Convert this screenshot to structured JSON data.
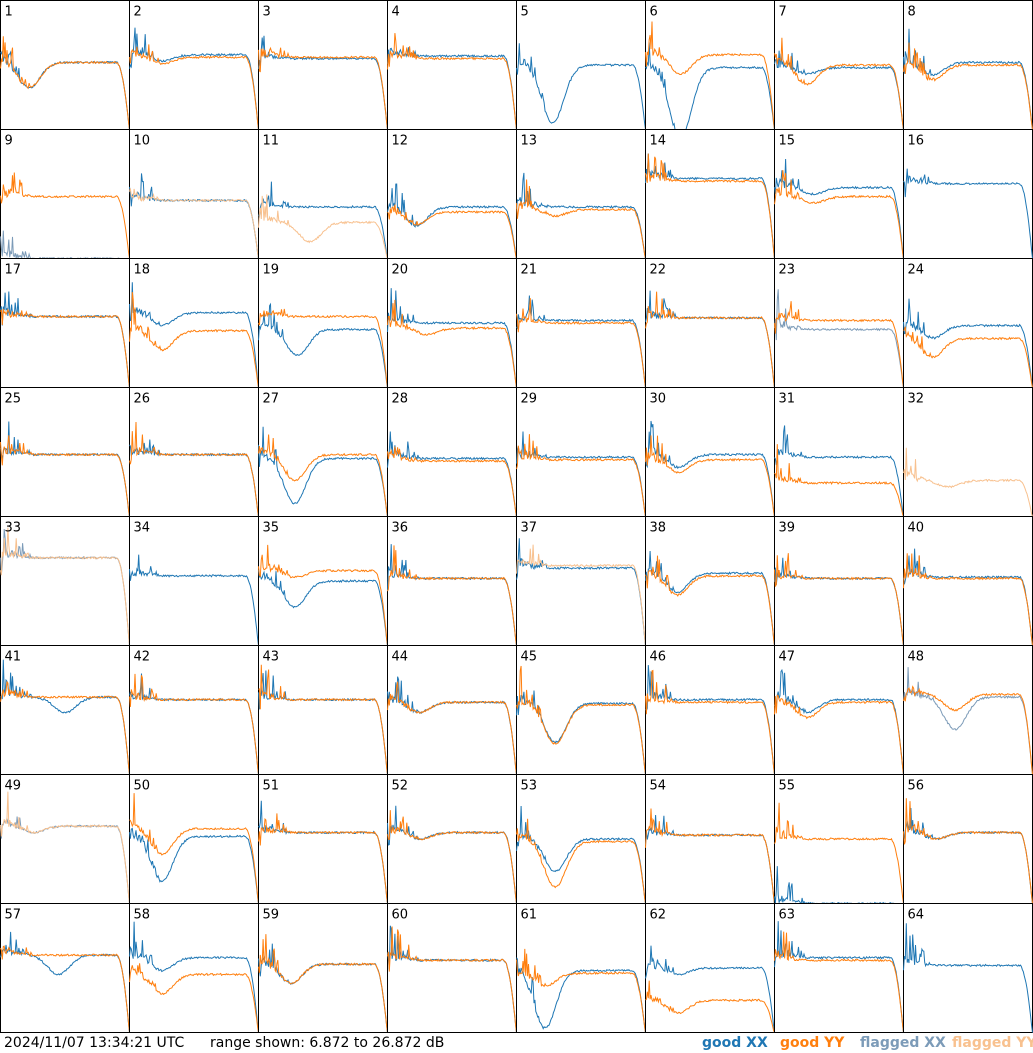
{
  "chart_data": {
    "type": "line",
    "layout": "small-multiples 8x8",
    "yrange_db": [
      6.872,
      26.872
    ],
    "series_styles": [
      {
        "key": "good_xx",
        "name": "good XX",
        "color": "#1f77b4"
      },
      {
        "key": "good_yy",
        "name": "good YY",
        "color": "#ff7f0e"
      },
      {
        "key": "flagged_xx",
        "name": "flagged XX",
        "color": "#7c9bb8"
      },
      {
        "key": "flagged_yy",
        "name": "flagged YY",
        "color": "#f8c18f"
      }
    ],
    "panels": [
      {
        "id": 1,
        "xx": "good",
        "yy": "good",
        "level_xx": 0.52,
        "level_yy": 0.52,
        "dip_xx": 0.2,
        "dip_yy": 0.2,
        "dip_pos": 0.22
      },
      {
        "id": 2,
        "xx": "good",
        "yy": "good",
        "level_xx": 0.58,
        "level_yy": 0.56,
        "dip_xx": 0.05,
        "dip_yy": 0.05,
        "dip_pos": 0.25
      },
      {
        "id": 3,
        "xx": "good",
        "yy": "good",
        "level_xx": 0.55,
        "level_yy": 0.56,
        "dip_xx": 0.0,
        "dip_yy": 0.0,
        "dip_pos": 0.3
      },
      {
        "id": 4,
        "xx": "good",
        "yy": "good",
        "level_xx": 0.57,
        "level_yy": 0.55,
        "dip_xx": 0.0,
        "dip_yy": 0.0,
        "dip_pos": 0.3
      },
      {
        "id": 5,
        "xx": "good",
        "yy": "none",
        "level_xx": 0.5,
        "level_yy": 0.5,
        "dip_xx": 0.45,
        "dip_yy": 0.0,
        "dip_pos": 0.28
      },
      {
        "id": 6,
        "xx": "good",
        "yy": "good",
        "level_xx": 0.48,
        "level_yy": 0.58,
        "dip_xx": 0.55,
        "dip_yy": 0.15,
        "dip_pos": 0.27
      },
      {
        "id": 7,
        "xx": "good",
        "yy": "good",
        "level_xx": 0.48,
        "level_yy": 0.5,
        "dip_xx": 0.05,
        "dip_yy": 0.15,
        "dip_pos": 0.25
      },
      {
        "id": 8,
        "xx": "good",
        "yy": "good",
        "level_xx": 0.52,
        "level_yy": 0.5,
        "dip_xx": 0.1,
        "dip_yy": 0.12,
        "dip_pos": 0.22
      },
      {
        "id": 9,
        "xx": "flagged",
        "yy": "good",
        "level_xx": 0.0,
        "level_yy": 0.48,
        "dip_xx": 0.0,
        "dip_yy": 0.0,
        "dip_pos": 0.3
      },
      {
        "id": 10,
        "xx": "good",
        "yy": "flagged",
        "level_xx": 0.45,
        "level_yy": 0.45,
        "dip_xx": 0.0,
        "dip_yy": 0.0,
        "dip_pos": 0.3
      },
      {
        "id": 11,
        "xx": "good",
        "yy": "flagged",
        "level_xx": 0.4,
        "level_yy": 0.28,
        "dip_xx": 0.0,
        "dip_yy": 0.15,
        "dip_pos": 0.4
      },
      {
        "id": 12,
        "xx": "good",
        "yy": "good",
        "level_xx": 0.4,
        "level_yy": 0.36,
        "dip_xx": 0.15,
        "dip_yy": 0.1,
        "dip_pos": 0.22
      },
      {
        "id": 13,
        "xx": "good",
        "yy": "good",
        "level_xx": 0.4,
        "level_yy": 0.38,
        "dip_xx": 0.0,
        "dip_yy": 0.05,
        "dip_pos": 0.3
      },
      {
        "id": 14,
        "xx": "good",
        "yy": "good",
        "level_xx": 0.62,
        "level_yy": 0.6,
        "dip_xx": 0.0,
        "dip_yy": 0.0,
        "dip_pos": 0.3
      },
      {
        "id": 15,
        "xx": "good",
        "yy": "good",
        "level_xx": 0.55,
        "level_yy": 0.48,
        "dip_xx": 0.05,
        "dip_yy": 0.05,
        "dip_pos": 0.3
      },
      {
        "id": 16,
        "xx": "good",
        "yy": "none",
        "level_xx": 0.58,
        "level_yy": 0.0,
        "dip_xx": 0.0,
        "dip_yy": 0.0,
        "dip_pos": 0.3
      },
      {
        "id": 17,
        "xx": "good",
        "yy": "good",
        "level_xx": 0.55,
        "level_yy": 0.55,
        "dip_xx": 0.0,
        "dip_yy": 0.0,
        "dip_pos": 0.3
      },
      {
        "id": 18,
        "xx": "good",
        "yy": "good",
        "level_xx": 0.58,
        "level_yy": 0.44,
        "dip_xx": 0.1,
        "dip_yy": 0.15,
        "dip_pos": 0.25
      },
      {
        "id": 19,
        "xx": "good",
        "yy": "good",
        "level_xx": 0.45,
        "level_yy": 0.55,
        "dip_xx": 0.2,
        "dip_yy": 0.0,
        "dip_pos": 0.3
      },
      {
        "id": 20,
        "xx": "good",
        "yy": "good",
        "level_xx": 0.5,
        "level_yy": 0.46,
        "dip_xx": 0.0,
        "dip_yy": 0.05,
        "dip_pos": 0.3
      },
      {
        "id": 21,
        "xx": "good",
        "yy": "good",
        "level_xx": 0.52,
        "level_yy": 0.5,
        "dip_xx": 0.0,
        "dip_yy": 0.0,
        "dip_pos": 0.3
      },
      {
        "id": 22,
        "xx": "good",
        "yy": "good",
        "level_xx": 0.54,
        "level_yy": 0.54,
        "dip_xx": 0.0,
        "dip_yy": 0.0,
        "dip_pos": 0.3
      },
      {
        "id": 23,
        "xx": "flagged",
        "yy": "good",
        "level_xx": 0.45,
        "level_yy": 0.52,
        "dip_xx": 0.0,
        "dip_yy": 0.0,
        "dip_pos": 0.3
      },
      {
        "id": 24,
        "xx": "good",
        "yy": "good",
        "level_xx": 0.48,
        "level_yy": 0.38,
        "dip_xx": 0.1,
        "dip_yy": 0.15,
        "dip_pos": 0.22
      },
      {
        "id": 25,
        "xx": "good",
        "yy": "good",
        "level_xx": 0.48,
        "level_yy": 0.48,
        "dip_xx": 0.0,
        "dip_yy": 0.0,
        "dip_pos": 0.3
      },
      {
        "id": 26,
        "xx": "good",
        "yy": "good",
        "level_xx": 0.48,
        "level_yy": 0.48,
        "dip_xx": 0.0,
        "dip_yy": 0.0,
        "dip_pos": 0.3
      },
      {
        "id": 27,
        "xx": "good",
        "yy": "good",
        "level_xx": 0.45,
        "level_yy": 0.48,
        "dip_xx": 0.35,
        "dip_yy": 0.2,
        "dip_pos": 0.28
      },
      {
        "id": 28,
        "xx": "good",
        "yy": "good",
        "level_xx": 0.45,
        "level_yy": 0.43,
        "dip_xx": 0.0,
        "dip_yy": 0.0,
        "dip_pos": 0.3
      },
      {
        "id": 29,
        "xx": "good",
        "yy": "good",
        "level_xx": 0.46,
        "level_yy": 0.44,
        "dip_xx": 0.0,
        "dip_yy": 0.0,
        "dip_pos": 0.3
      },
      {
        "id": 30,
        "xx": "good",
        "yy": "good",
        "level_xx": 0.48,
        "level_yy": 0.44,
        "dip_xx": 0.1,
        "dip_yy": 0.1,
        "dip_pos": 0.25
      },
      {
        "id": 31,
        "xx": "good",
        "yy": "good",
        "level_xx": 0.46,
        "level_yy": 0.26,
        "dip_xx": 0.0,
        "dip_yy": 0.0,
        "dip_pos": 0.3
      },
      {
        "id": 32,
        "xx": "none",
        "yy": "flagged",
        "level_xx": 0.0,
        "level_yy": 0.28,
        "dip_xx": 0.0,
        "dip_yy": 0.05,
        "dip_pos": 0.35
      },
      {
        "id": 33,
        "xx": "flagged",
        "yy": "flagged",
        "level_xx": 0.68,
        "level_yy": 0.68,
        "dip_xx": 0.0,
        "dip_yy": 0.0,
        "dip_pos": 0.3
      },
      {
        "id": 34,
        "xx": "good",
        "yy": "none",
        "level_xx": 0.54,
        "level_yy": 0.0,
        "dip_xx": 0.0,
        "dip_yy": 0.0,
        "dip_pos": 0.3
      },
      {
        "id": 35,
        "xx": "good",
        "yy": "good",
        "level_xx": 0.5,
        "level_yy": 0.58,
        "dip_xx": 0.2,
        "dip_yy": 0.05,
        "dip_pos": 0.28
      },
      {
        "id": 36,
        "xx": "good",
        "yy": "good",
        "level_xx": 0.52,
        "level_yy": 0.52,
        "dip_xx": 0.0,
        "dip_yy": 0.0,
        "dip_pos": 0.3
      },
      {
        "id": 37,
        "xx": "good",
        "yy": "flagged",
        "level_xx": 0.6,
        "level_yy": 0.62,
        "dip_xx": 0.0,
        "dip_yy": 0.0,
        "dip_pos": 0.3
      },
      {
        "id": 38,
        "xx": "good",
        "yy": "good",
        "level_xx": 0.56,
        "level_yy": 0.54,
        "dip_xx": 0.15,
        "dip_yy": 0.15,
        "dip_pos": 0.24
      },
      {
        "id": 39,
        "xx": "good",
        "yy": "good",
        "level_xx": 0.52,
        "level_yy": 0.52,
        "dip_xx": 0.0,
        "dip_yy": 0.0,
        "dip_pos": 0.3
      },
      {
        "id": 40,
        "xx": "good",
        "yy": "good",
        "level_xx": 0.53,
        "level_yy": 0.52,
        "dip_xx": 0.0,
        "dip_yy": 0.0,
        "dip_pos": 0.3
      },
      {
        "id": 41,
        "xx": "good",
        "yy": "good",
        "level_xx": 0.6,
        "level_yy": 0.6,
        "dip_xx": 0.12,
        "dip_yy": 0.0,
        "dip_pos": 0.5
      },
      {
        "id": 42,
        "xx": "good",
        "yy": "good",
        "level_xx": 0.58,
        "level_yy": 0.58,
        "dip_xx": 0.0,
        "dip_yy": 0.0,
        "dip_pos": 0.3
      },
      {
        "id": 43,
        "xx": "good",
        "yy": "good",
        "level_xx": 0.58,
        "level_yy": 0.58,
        "dip_xx": 0.0,
        "dip_yy": 0.0,
        "dip_pos": 0.3
      },
      {
        "id": 44,
        "xx": "good",
        "yy": "good",
        "level_xx": 0.56,
        "level_yy": 0.56,
        "dip_xx": 0.08,
        "dip_yy": 0.08,
        "dip_pos": 0.24
      },
      {
        "id": 45,
        "xx": "good",
        "yy": "good",
        "level_xx": 0.55,
        "level_yy": 0.54,
        "dip_xx": 0.3,
        "dip_yy": 0.3,
        "dip_pos": 0.3
      },
      {
        "id": 46,
        "xx": "good",
        "yy": "good",
        "level_xx": 0.58,
        "level_yy": 0.56,
        "dip_xx": 0.0,
        "dip_yy": 0.0,
        "dip_pos": 0.3
      },
      {
        "id": 47,
        "xx": "good",
        "yy": "good",
        "level_xx": 0.58,
        "level_yy": 0.56,
        "dip_xx": 0.1,
        "dip_yy": 0.12,
        "dip_pos": 0.25
      },
      {
        "id": 48,
        "xx": "flagged",
        "yy": "good",
        "level_xx": 0.6,
        "level_yy": 0.62,
        "dip_xx": 0.25,
        "dip_yy": 0.12,
        "dip_pos": 0.4
      },
      {
        "id": 49,
        "xx": "flagged",
        "yy": "flagged",
        "level_xx": 0.6,
        "level_yy": 0.6,
        "dip_xx": 0.05,
        "dip_yy": 0.05,
        "dip_pos": 0.25
      },
      {
        "id": 50,
        "xx": "good",
        "yy": "good",
        "level_xx": 0.52,
        "level_yy": 0.58,
        "dip_xx": 0.35,
        "dip_yy": 0.2,
        "dip_pos": 0.25
      },
      {
        "id": 51,
        "xx": "good",
        "yy": "good",
        "level_xx": 0.55,
        "level_yy": 0.55,
        "dip_xx": 0.0,
        "dip_yy": 0.0,
        "dip_pos": 0.3
      },
      {
        "id": 52,
        "xx": "good",
        "yy": "good",
        "level_xx": 0.55,
        "level_yy": 0.55,
        "dip_xx": 0.05,
        "dip_yy": 0.05,
        "dip_pos": 0.25
      },
      {
        "id": 53,
        "xx": "good",
        "yy": "good",
        "level_xx": 0.5,
        "level_yy": 0.48,
        "dip_xx": 0.25,
        "dip_yy": 0.35,
        "dip_pos": 0.3
      },
      {
        "id": 54,
        "xx": "good",
        "yy": "good",
        "level_xx": 0.53,
        "level_yy": 0.53,
        "dip_xx": 0.0,
        "dip_yy": 0.0,
        "dip_pos": 0.3
      },
      {
        "id": 55,
        "xx": "good",
        "yy": "good",
        "level_xx": 0.0,
        "level_yy": 0.5,
        "dip_xx": 0.0,
        "dip_yy": 0.0,
        "dip_pos": 0.3
      },
      {
        "id": 56,
        "xx": "good",
        "yy": "good",
        "level_xx": 0.55,
        "level_yy": 0.55,
        "dip_xx": 0.05,
        "dip_yy": 0.05,
        "dip_pos": 0.25
      },
      {
        "id": 57,
        "xx": "good",
        "yy": "good",
        "level_xx": 0.6,
        "level_yy": 0.6,
        "dip_xx": 0.15,
        "dip_yy": 0.0,
        "dip_pos": 0.45
      },
      {
        "id": 58,
        "xx": "good",
        "yy": "good",
        "level_xx": 0.58,
        "level_yy": 0.45,
        "dip_xx": 0.1,
        "dip_yy": 0.15,
        "dip_pos": 0.25
      },
      {
        "id": 59,
        "xx": "good",
        "yy": "good",
        "level_xx": 0.53,
        "level_yy": 0.53,
        "dip_xx": 0.15,
        "dip_yy": 0.15,
        "dip_pos": 0.25
      },
      {
        "id": 60,
        "xx": "good",
        "yy": "good",
        "level_xx": 0.56,
        "level_yy": 0.56,
        "dip_xx": 0.0,
        "dip_yy": 0.0,
        "dip_pos": 0.3
      },
      {
        "id": 61,
        "xx": "good",
        "yy": "good",
        "level_xx": 0.48,
        "level_yy": 0.46,
        "dip_xx": 0.45,
        "dip_yy": 0.1,
        "dip_pos": 0.22
      },
      {
        "id": 62,
        "xx": "good",
        "yy": "good",
        "level_xx": 0.5,
        "level_yy": 0.25,
        "dip_xx": 0.05,
        "dip_yy": 0.1,
        "dip_pos": 0.25
      },
      {
        "id": 63,
        "xx": "good",
        "yy": "good",
        "level_xx": 0.58,
        "level_yy": 0.56,
        "dip_xx": 0.0,
        "dip_yy": 0.0,
        "dip_pos": 0.3
      },
      {
        "id": 64,
        "xx": "good",
        "yy": "none",
        "level_xx": 0.52,
        "level_yy": 0.0,
        "dip_xx": 0.0,
        "dip_yy": 0.0,
        "dip_pos": 0.3
      }
    ]
  },
  "footer": {
    "timestamp": "2024/11/07 13:34:21 UTC",
    "range_text": "range shown: 6.872 to 26.872 dB",
    "legend": {
      "good_xx": "good XX",
      "good_yy": "good YY",
      "flagged_xx": "flagged XX",
      "flagged_yy": "flagged YY"
    }
  }
}
